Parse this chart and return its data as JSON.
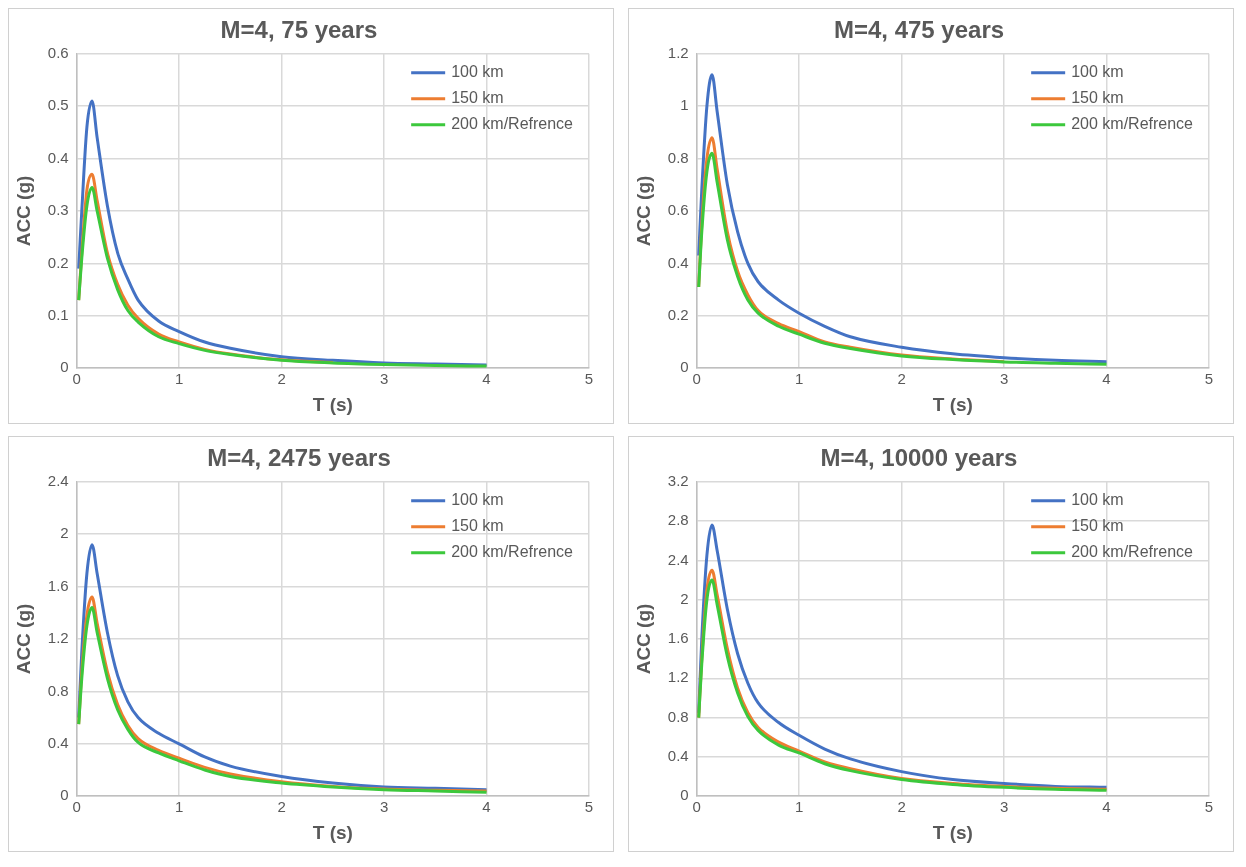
{
  "chart_data": [
    {
      "type": "line",
      "title": "M=4, 75 years",
      "xlabel": "T (s)",
      "ylabel": "ACC (g)",
      "xlim": [
        0,
        5
      ],
      "xticks": [
        0,
        1,
        2,
        3,
        4,
        5
      ],
      "ylim": [
        0,
        0.6
      ],
      "yticks": [
        0,
        0.1,
        0.2,
        0.3,
        0.4,
        0.5,
        0.6
      ],
      "grid": true,
      "legend": "top right",
      "marker": "none",
      "x": [
        0.02,
        0.05,
        0.1,
        0.15,
        0.2,
        0.3,
        0.4,
        0.5,
        0.6,
        0.8,
        1,
        1.25,
        1.5,
        2,
        2.5,
        3,
        3.5,
        4
      ],
      "series": [
        {
          "name": "100 km",
          "color": "#4472c4",
          "values": [
            0.19,
            0.3,
            0.46,
            0.51,
            0.44,
            0.31,
            0.22,
            0.17,
            0.13,
            0.09,
            0.07,
            0.05,
            0.038,
            0.022,
            0.015,
            0.01,
            0.008,
            0.006
          ]
        },
        {
          "name": "150 km",
          "color": "#ed7d31",
          "values": [
            0.13,
            0.22,
            0.34,
            0.37,
            0.32,
            0.22,
            0.16,
            0.12,
            0.095,
            0.065,
            0.05,
            0.036,
            0.027,
            0.016,
            0.011,
            null,
            null,
            null
          ]
        },
        {
          "name": "200 km/Refrence",
          "color": "#3cc83c",
          "values": [
            0.13,
            0.21,
            0.31,
            0.345,
            0.3,
            0.21,
            0.15,
            0.11,
            0.088,
            0.06,
            0.047,
            0.034,
            0.026,
            0.015,
            0.01,
            0.007,
            0.005,
            0.004
          ]
        }
      ]
    },
    {
      "type": "line",
      "title": "M=4, 475 years",
      "xlabel": "T (s)",
      "ylabel": "ACC (g)",
      "xlim": [
        0,
        5
      ],
      "xticks": [
        0,
        1,
        2,
        3,
        4,
        5
      ],
      "ylim": [
        0,
        1.2
      ],
      "yticks": [
        0,
        0.2,
        0.4,
        0.6,
        0.8,
        1,
        1.2
      ],
      "grid": true,
      "legend": "top right",
      "marker": "none",
      "x": [
        0.02,
        0.05,
        0.1,
        0.15,
        0.2,
        0.3,
        0.4,
        0.5,
        0.6,
        0.8,
        1,
        1.25,
        1.5,
        2,
        2.5,
        3,
        3.5,
        4
      ],
      "series": [
        {
          "name": "100 km",
          "color": "#4472c4",
          "values": [
            0.43,
            0.68,
            1.0,
            1.12,
            0.98,
            0.7,
            0.52,
            0.4,
            0.33,
            0.26,
            0.21,
            0.16,
            0.12,
            0.08,
            0.055,
            0.04,
            0.03,
            0.025
          ]
        },
        {
          "name": "150 km",
          "color": "#ed7d31",
          "values": [
            0.31,
            0.55,
            0.8,
            0.88,
            0.76,
            0.52,
            0.37,
            0.28,
            0.22,
            0.17,
            0.14,
            0.1,
            0.08,
            0.05,
            0.035,
            0.025,
            null,
            null
          ]
        },
        {
          "name": "200 km/Refrence",
          "color": "#3cc83c",
          "values": [
            0.31,
            0.52,
            0.75,
            0.82,
            0.71,
            0.49,
            0.35,
            0.26,
            0.21,
            0.16,
            0.13,
            0.095,
            0.075,
            0.047,
            0.033,
            0.024,
            0.019,
            0.015
          ]
        }
      ]
    },
    {
      "type": "line",
      "title": "M=4, 2475 years",
      "xlabel": "T (s)",
      "ylabel": "ACC (g)",
      "xlim": [
        0,
        5
      ],
      "xticks": [
        0,
        1,
        2,
        3,
        4,
        5
      ],
      "ylim": [
        0,
        2.4
      ],
      "yticks": [
        0,
        0.4,
        0.8,
        1.2,
        1.6,
        2,
        2.4
      ],
      "grid": true,
      "legend": "top right",
      "marker": "none",
      "x": [
        0.02,
        0.05,
        0.1,
        0.15,
        0.2,
        0.3,
        0.4,
        0.5,
        0.6,
        0.8,
        1,
        1.25,
        1.5,
        2,
        2.5,
        3,
        3.5,
        4
      ],
      "series": [
        {
          "name": "100 km",
          "color": "#4472c4",
          "values": [
            0.6,
            1.1,
            1.7,
            1.92,
            1.7,
            1.25,
            0.92,
            0.72,
            0.6,
            0.48,
            0.4,
            0.3,
            0.23,
            0.15,
            0.1,
            0.07,
            0.06,
            0.05
          ]
        },
        {
          "name": "150 km",
          "color": "#ed7d31",
          "values": [
            0.55,
            0.95,
            1.38,
            1.52,
            1.32,
            0.95,
            0.7,
            0.54,
            0.44,
            0.35,
            0.29,
            0.22,
            0.17,
            0.11,
            0.075,
            0.055,
            0.045,
            0.04
          ]
        },
        {
          "name": "200 km/Refrence",
          "color": "#3cc83c",
          "values": [
            0.55,
            0.9,
            1.3,
            1.44,
            1.25,
            0.9,
            0.66,
            0.51,
            0.41,
            0.33,
            0.27,
            0.2,
            0.15,
            0.1,
            0.07,
            0.05,
            0.04,
            0.03
          ]
        }
      ]
    },
    {
      "type": "line",
      "title": "M=4, 10000 years",
      "xlabel": "T (s)",
      "ylabel": "ACC (g)",
      "xlim": [
        0,
        5
      ],
      "xticks": [
        0,
        1,
        2,
        3,
        4,
        5
      ],
      "ylim": [
        0,
        3.2
      ],
      "yticks": [
        0,
        0.4,
        0.8,
        1.2,
        1.6,
        2,
        2.4,
        2.8,
        3.2
      ],
      "grid": true,
      "legend": "top right",
      "marker": "none",
      "x": [
        0.02,
        0.05,
        0.1,
        0.15,
        0.2,
        0.3,
        0.4,
        0.5,
        0.6,
        0.8,
        1,
        1.25,
        1.5,
        2,
        2.5,
        3,
        3.5,
        4
      ],
      "series": [
        {
          "name": "100 km",
          "color": "#4472c4",
          "values": [
            0.85,
            1.6,
            2.45,
            2.76,
            2.5,
            1.9,
            1.45,
            1.15,
            0.95,
            0.75,
            0.62,
            0.48,
            0.38,
            0.25,
            0.17,
            0.13,
            0.1,
            0.09
          ]
        },
        {
          "name": "150 km",
          "color": "#ed7d31",
          "values": [
            0.8,
            1.4,
            2.1,
            2.3,
            2.05,
            1.5,
            1.1,
            0.85,
            0.7,
            0.55,
            0.46,
            0.35,
            0.28,
            0.18,
            0.13,
            0.1,
            0.08,
            0.07
          ]
        },
        {
          "name": "200 km/Refrence",
          "color": "#3cc83c",
          "values": [
            0.8,
            1.35,
            2.0,
            2.2,
            1.95,
            1.42,
            1.05,
            0.81,
            0.67,
            0.52,
            0.44,
            0.33,
            0.26,
            0.17,
            0.12,
            0.09,
            0.07,
            0.06
          ]
        }
      ]
    }
  ]
}
